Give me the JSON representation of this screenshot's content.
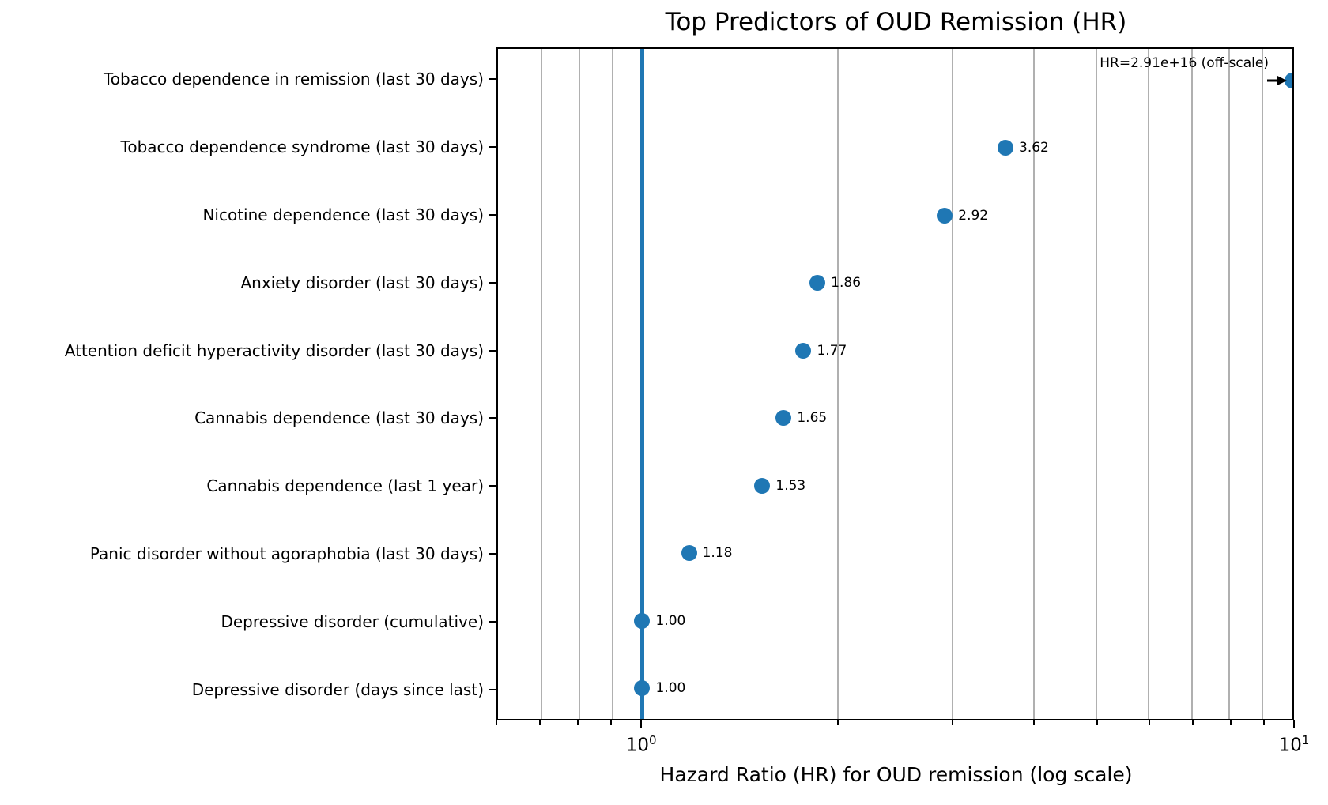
{
  "chart_data": {
    "type": "scatter",
    "title": "Top Predictors of OUD Remission (HR)",
    "xlabel": "Hazard Ratio (HR) for OUD remission (log scale)",
    "xscale": "log",
    "xlim": [
      0.6,
      10
    ],
    "grid": true,
    "categories": [
      "Tobacco dependence in remission (last 30 days)",
      "Tobacco dependence syndrome (last 30 days)",
      "Nicotine dependence (last 30 days)",
      "Anxiety disorder (last 30 days)",
      "Attention deficit hyperactivity disorder (last 30 days)",
      "Cannabis dependence (last 30 days)",
      "Cannabis dependence (last 1 year)",
      "Panic disorder without agoraphobia (last 30 days)",
      "Depressive disorder (cumulative)",
      "Depressive disorder (days since last)"
    ],
    "values": [
      2.91e+16,
      3.62,
      2.92,
      1.86,
      1.77,
      1.65,
      1.53,
      1.18,
      1.0,
      1.0
    ],
    "value_labels": [
      "",
      "3.62",
      "2.92",
      "1.86",
      "1.77",
      "1.65",
      "1.53",
      "1.18",
      "1.00",
      "1.00"
    ],
    "offscale_annotation": {
      "text": "HR=2.91e+16 (off-scale)",
      "row_index": 0
    },
    "reference_line": {
      "x": 1.0,
      "color": "#1f77b4"
    },
    "gridlines": [
      0.7,
      0.8,
      0.9,
      2,
      3,
      4,
      5,
      6,
      7,
      8,
      9
    ],
    "minor_ticks": [
      0.6,
      0.7,
      0.8,
      0.9,
      2,
      3,
      4,
      5,
      6,
      7,
      8,
      9
    ],
    "major_ticks": [
      {
        "value": 1,
        "label_base": "10",
        "label_exp": "0"
      },
      {
        "value": 10,
        "label_base": "10",
        "label_exp": "1"
      }
    ],
    "colors": {
      "dot": "#1f77b4",
      "grid": "#b0b0b0",
      "spine": "#000000",
      "background": "#ffffff"
    }
  }
}
